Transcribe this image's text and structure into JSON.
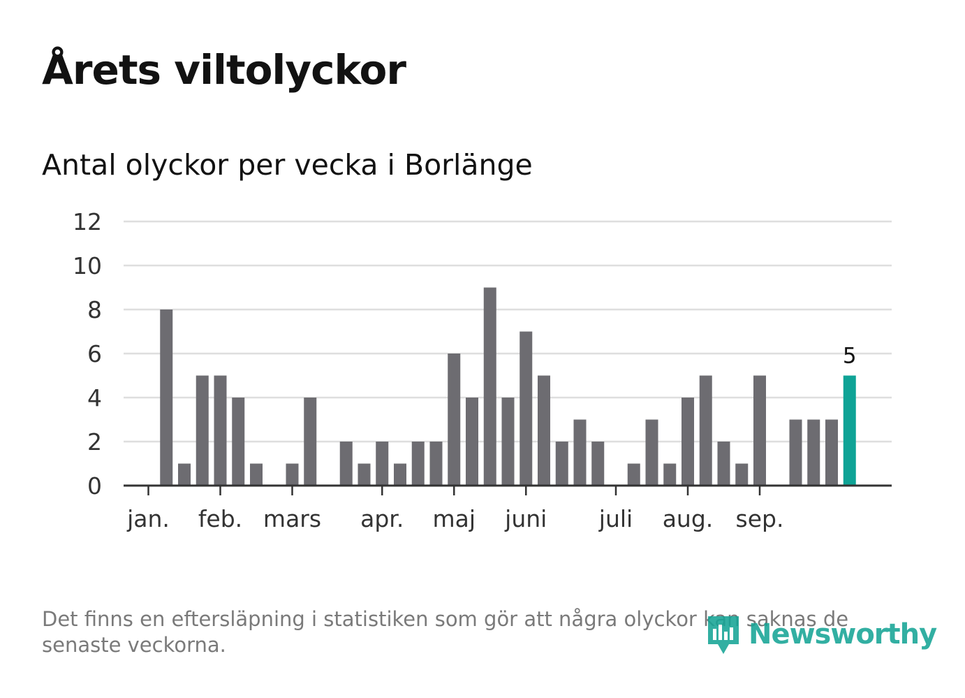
{
  "title": "Årets viltolyckor",
  "subtitle": "Antal olyckor per vecka i Borlänge",
  "footnote": "Det finns en eftersläpning i statistiken som gör att några olyckor kan saknas de senaste veckorna.",
  "logo": {
    "name": "Newsworthy",
    "icon": "newsworthy-bars-icon"
  },
  "colors": {
    "bar": "#6d6c71",
    "highlight": "#0fa396",
    "grid": "#dedede",
    "axis": "#333333",
    "tick_text": "#333333"
  },
  "chart_data": {
    "type": "bar",
    "title": "Antal olyckor per vecka i Borlänge",
    "xlabel": "",
    "ylabel": "",
    "x": [
      1,
      2,
      3,
      4,
      5,
      6,
      7,
      8,
      9,
      10,
      11,
      12,
      13,
      14,
      15,
      16,
      17,
      18,
      19,
      20,
      21,
      22,
      23,
      24,
      25,
      26,
      27,
      28,
      29,
      30,
      31,
      32,
      33,
      34,
      35,
      36,
      37,
      38,
      39,
      40,
      41,
      42,
      43
    ],
    "values": [
      0,
      8,
      1,
      5,
      5,
      4,
      1,
      0,
      1,
      4,
      0,
      2,
      1,
      2,
      1,
      2,
      2,
      6,
      4,
      9,
      4,
      7,
      5,
      2,
      3,
      2,
      0,
      1,
      3,
      1,
      4,
      5,
      2,
      1,
      5,
      0,
      3,
      3,
      3,
      5,
      0,
      0,
      0
    ],
    "ylim": [
      0,
      12
    ],
    "yticks": [
      0,
      2,
      4,
      6,
      8,
      10,
      12
    ],
    "month_ticks": [
      {
        "label": "jan.",
        "x": 1.0
      },
      {
        "label": "feb.",
        "x": 5.0
      },
      {
        "label": "mars",
        "x": 9.0
      },
      {
        "label": "apr.",
        "x": 14.0
      },
      {
        "label": "maj",
        "x": 18.0
      },
      {
        "label": "juni",
        "x": 22.0
      },
      {
        "label": "juli",
        "x": 27.0
      },
      {
        "label": "aug.",
        "x": 31.0
      },
      {
        "label": "sep.",
        "x": 35.0
      }
    ],
    "highlight_x": 40,
    "highlight_label": "5",
    "grid": true,
    "legend": "none"
  }
}
